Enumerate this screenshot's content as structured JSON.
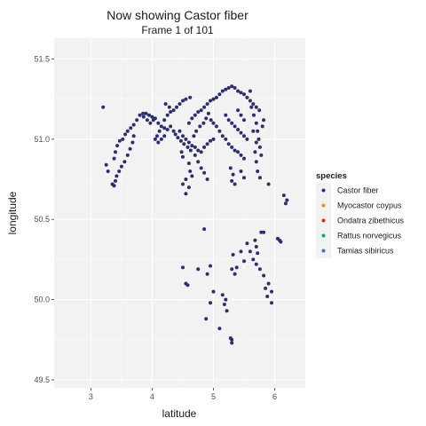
{
  "chart_data": {
    "type": "scatter",
    "title": "Now showing Castor fiber",
    "subtitle": "Frame 1 of 101",
    "xlabel": "latitude",
    "ylabel": "longitude",
    "xlim": [
      2.4,
      6.5
    ],
    "ylim": [
      49.45,
      51.63
    ],
    "x_ticks": [
      3,
      4,
      5,
      6
    ],
    "y_ticks": [
      49.5,
      50.0,
      50.5,
      51.0,
      51.5
    ],
    "y_tick_labels": [
      "49.5",
      "50.0",
      "50.5",
      "51.0",
      "51.5"
    ],
    "grid": true,
    "panel_background": "#f2f2f2",
    "legend": {
      "title": "species",
      "position": "right",
      "entries": [
        {
          "label": "Castor fiber",
          "color": "#2e2e6e"
        },
        {
          "label": "Myocastor coypus",
          "color": "#e8901c"
        },
        {
          "label": "Ondatra zibethicus",
          "color": "#d22b1f"
        },
        {
          "label": "Rattus norvegicus",
          "color": "#13a36b"
        },
        {
          "label": "Tamias sibiricus",
          "color": "#3f6fc2"
        }
      ]
    },
    "series": [
      {
        "name": "Castor fiber",
        "color": "#2e2e6e",
        "points": [
          [
            3.2,
            51.2
          ],
          [
            3.25,
            50.84
          ],
          [
            3.28,
            50.8
          ],
          [
            3.35,
            50.72
          ],
          [
            3.38,
            50.71
          ],
          [
            3.4,
            50.74
          ],
          [
            3.42,
            50.77
          ],
          [
            3.46,
            50.8
          ],
          [
            3.5,
            50.83
          ],
          [
            3.55,
            50.86
          ],
          [
            3.6,
            50.9
          ],
          [
            3.64,
            50.94
          ],
          [
            3.68,
            50.98
          ],
          [
            3.7,
            51.02
          ],
          [
            3.38,
            50.88
          ],
          [
            3.4,
            50.92
          ],
          [
            3.43,
            50.96
          ],
          [
            3.47,
            50.99
          ],
          [
            3.52,
            51.0
          ],
          [
            3.56,
            51.03
          ],
          [
            3.6,
            51.05
          ],
          [
            3.65,
            51.07
          ],
          [
            3.7,
            51.09
          ],
          [
            3.75,
            51.12
          ],
          [
            3.8,
            51.15
          ],
          [
            3.85,
            51.16
          ],
          [
            3.9,
            51.16
          ],
          [
            3.95,
            51.15
          ],
          [
            4.0,
            51.14
          ],
          [
            4.05,
            51.13
          ],
          [
            3.86,
            51.14
          ],
          [
            3.92,
            51.12
          ],
          [
            3.97,
            51.1
          ],
          [
            4.02,
            51.12
          ],
          [
            4.1,
            51.1
          ],
          [
            4.15,
            51.08
          ],
          [
            4.2,
            51.07
          ],
          [
            4.25,
            51.06
          ],
          [
            4.3,
            51.08
          ],
          [
            4.12,
            51.05
          ],
          [
            4.08,
            51.02
          ],
          [
            4.05,
            51.0
          ],
          [
            4.1,
            50.98
          ],
          [
            4.15,
            51.0
          ],
          [
            4.2,
            51.02
          ],
          [
            4.2,
            51.12
          ],
          [
            4.25,
            51.15
          ],
          [
            4.3,
            51.17
          ],
          [
            4.35,
            51.18
          ],
          [
            4.4,
            51.2
          ],
          [
            4.45,
            51.22
          ],
          [
            4.5,
            51.24
          ],
          [
            4.55,
            51.25
          ],
          [
            4.62,
            51.26
          ],
          [
            4.28,
            51.2
          ],
          [
            4.22,
            51.22
          ],
          [
            4.45,
            51.05
          ],
          [
            4.5,
            51.02
          ],
          [
            4.55,
            51.0
          ],
          [
            4.6,
            50.98
          ],
          [
            4.65,
            50.96
          ],
          [
            4.7,
            50.95
          ],
          [
            4.75,
            50.93
          ],
          [
            4.8,
            50.92
          ],
          [
            4.85,
            50.95
          ],
          [
            4.9,
            50.97
          ],
          [
            4.95,
            50.99
          ],
          [
            5.0,
            51.0
          ],
          [
            4.6,
            51.1
          ],
          [
            4.65,
            51.13
          ],
          [
            4.7,
            51.15
          ],
          [
            4.75,
            51.17
          ],
          [
            4.8,
            51.18
          ],
          [
            4.85,
            51.2
          ],
          [
            4.9,
            51.22
          ],
          [
            4.95,
            51.24
          ],
          [
            5.0,
            51.25
          ],
          [
            5.05,
            51.26
          ],
          [
            5.1,
            51.28
          ],
          [
            5.15,
            51.3
          ],
          [
            5.2,
            51.31
          ],
          [
            5.25,
            51.32
          ],
          [
            5.3,
            51.33
          ],
          [
            5.35,
            51.32
          ],
          [
            5.4,
            51.3
          ],
          [
            5.45,
            51.29
          ],
          [
            5.5,
            51.28
          ],
          [
            5.55,
            51.26
          ],
          [
            5.6,
            51.24
          ],
          [
            5.65,
            51.22
          ],
          [
            5.7,
            51.2
          ],
          [
            5.75,
            51.18
          ],
          [
            5.6,
            51.3
          ],
          [
            5.62,
            51.2
          ],
          [
            5.66,
            51.15
          ],
          [
            5.7,
            51.1
          ],
          [
            5.72,
            51.05
          ],
          [
            5.74,
            51.0
          ],
          [
            5.76,
            50.95
          ],
          [
            5.78,
            50.9
          ],
          [
            5.68,
            50.92
          ],
          [
            5.7,
            50.98
          ],
          [
            5.8,
            51.08
          ],
          [
            5.82,
            51.12
          ],
          [
            5.65,
            51.05
          ],
          [
            4.6,
            50.85
          ],
          [
            4.62,
            50.8
          ],
          [
            4.65,
            50.77
          ],
          [
            4.55,
            50.75
          ],
          [
            4.5,
            50.72
          ],
          [
            4.6,
            50.7
          ],
          [
            4.55,
            50.66
          ],
          [
            4.7,
            50.9
          ],
          [
            4.75,
            50.86
          ],
          [
            4.8,
            50.82
          ],
          [
            4.85,
            50.79
          ],
          [
            4.9,
            50.75
          ],
          [
            5.1,
            51.05
          ],
          [
            5.15,
            51.02
          ],
          [
            5.2,
            51.0
          ],
          [
            5.25,
            50.97
          ],
          [
            5.3,
            50.95
          ],
          [
            5.35,
            50.93
          ],
          [
            5.4,
            50.92
          ],
          [
            5.45,
            50.9
          ],
          [
            5.5,
            50.88
          ],
          [
            5.28,
            50.82
          ],
          [
            5.32,
            50.78
          ],
          [
            5.3,
            50.74
          ],
          [
            5.35,
            50.72
          ],
          [
            5.45,
            50.8
          ],
          [
            5.5,
            50.76
          ],
          [
            5.2,
            51.15
          ],
          [
            5.25,
            51.12
          ],
          [
            5.3,
            51.1
          ],
          [
            5.35,
            51.08
          ],
          [
            5.4,
            51.06
          ],
          [
            5.45,
            51.04
          ],
          [
            5.5,
            51.02
          ],
          [
            5.55,
            51.0
          ],
          [
            5.5,
            51.12
          ],
          [
            5.45,
            51.15
          ],
          [
            5.4,
            51.18
          ],
          [
            4.35,
            51.05
          ],
          [
            4.38,
            51.03
          ],
          [
            4.42,
            51.01
          ],
          [
            4.47,
            50.99
          ],
          [
            4.52,
            50.97
          ],
          [
            4.58,
            50.95
          ],
          [
            4.63,
            50.93
          ],
          [
            4.48,
            50.92
          ],
          [
            4.5,
            50.89
          ],
          [
            4.68,
            51.02
          ],
          [
            4.72,
            51.05
          ],
          [
            4.78,
            51.08
          ],
          [
            4.84,
            51.1
          ],
          [
            4.88,
            51.13
          ],
          [
            4.92,
            51.16
          ],
          [
            4.96,
            51.12
          ],
          [
            5.0,
            51.1
          ],
          [
            5.05,
            51.08
          ],
          [
            5.7,
            50.86
          ],
          [
            5.72,
            50.8
          ],
          [
            5.76,
            50.76
          ],
          [
            5.9,
            50.72
          ],
          [
            6.15,
            50.65
          ],
          [
            6.2,
            50.62
          ],
          [
            6.18,
            50.6
          ],
          [
            4.85,
            50.44
          ],
          [
            5.3,
            50.19
          ],
          [
            5.35,
            50.16
          ],
          [
            5.38,
            50.2
          ],
          [
            5.32,
            50.28
          ],
          [
            5.45,
            50.3
          ],
          [
            5.5,
            50.24
          ],
          [
            5.6,
            50.3
          ],
          [
            5.65,
            50.25
          ],
          [
            5.7,
            50.22
          ],
          [
            5.55,
            50.35
          ],
          [
            4.5,
            50.2
          ],
          [
            4.55,
            50.1
          ],
          [
            4.58,
            50.09
          ],
          [
            4.75,
            50.19
          ],
          [
            4.95,
            50.21
          ],
          [
            4.9,
            50.16
          ],
          [
            5.0,
            50.05
          ],
          [
            4.95,
            49.98
          ],
          [
            5.15,
            50.03
          ],
          [
            5.2,
            50.0
          ],
          [
            5.22,
            49.93
          ],
          [
            5.18,
            49.97
          ],
          [
            4.88,
            49.88
          ],
          [
            5.1,
            49.82
          ],
          [
            5.3,
            49.75
          ],
          [
            5.3,
            49.73
          ],
          [
            5.28,
            49.76
          ],
          [
            5.7,
            50.33
          ],
          [
            5.78,
            50.42
          ],
          [
            5.82,
            50.42
          ],
          [
            5.68,
            50.37
          ],
          [
            5.72,
            50.29
          ],
          [
            5.76,
            50.19
          ],
          [
            5.82,
            50.15
          ],
          [
            5.85,
            50.07
          ],
          [
            5.88,
            50.02
          ],
          [
            5.95,
            49.98
          ],
          [
            6.05,
            50.38
          ],
          [
            6.08,
            50.37
          ],
          [
            6.1,
            50.36
          ],
          [
            5.9,
            50.1
          ],
          [
            5.95,
            50.05
          ]
        ]
      }
    ]
  }
}
